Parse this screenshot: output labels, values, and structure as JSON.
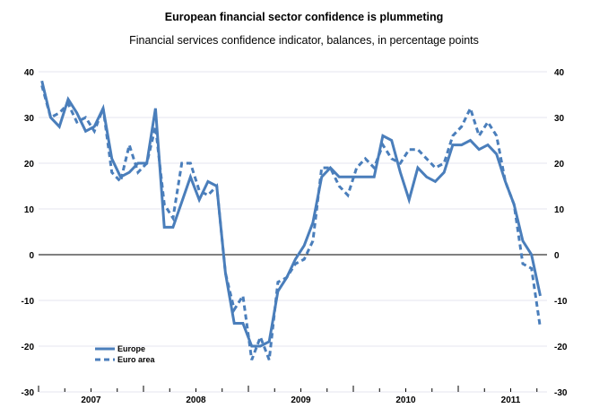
{
  "chart_data": {
    "type": "line",
    "title": "European financial sector confidence is plummeting",
    "subtitle": "Financial services confidence indicator, balances, in percentage points",
    "xlabel": "",
    "ylabel": "",
    "ylim": [
      -30,
      40
    ],
    "yticks": [
      40,
      30,
      20,
      10,
      0,
      -10,
      -20,
      -30
    ],
    "x_start": "2007-01",
    "x_frequency": "monthly",
    "xtick_labels": [
      "2007",
      "2008",
      "2009",
      "2010",
      "2011"
    ],
    "grid": true,
    "legend_position": "bottom-left",
    "colors": {
      "series": "#4a7ebb",
      "grid": "#e4e6ef",
      "zero": "#000000"
    },
    "series": [
      {
        "name": "Europe",
        "style": "solid",
        "values": [
          38,
          30,
          28,
          34,
          31,
          27,
          28,
          32,
          21,
          17,
          18,
          20,
          20,
          32,
          6,
          6,
          11.5,
          17,
          12,
          16,
          15,
          -4,
          -15,
          -15,
          -20,
          -20,
          -19,
          -8,
          -5,
          -1,
          2,
          7,
          17,
          19,
          17,
          17,
          17,
          17,
          17,
          26,
          25,
          18,
          12,
          19,
          17,
          16,
          18,
          24,
          24,
          25,
          23,
          24,
          22,
          16,
          11,
          3,
          0,
          -9
        ]
      },
      {
        "name": "Euro area",
        "style": "dashed",
        "values": [
          37,
          30,
          31,
          33,
          29,
          30,
          27,
          32,
          18,
          16,
          24,
          18,
          20,
          28,
          11,
          8,
          20,
          20,
          14,
          13,
          15,
          -4,
          -12,
          -9,
          -23,
          -18,
          -23,
          -6,
          -5,
          -2,
          -1,
          3,
          19,
          19,
          15,
          13,
          19,
          21,
          19,
          24,
          21,
          20,
          23,
          23,
          21,
          19,
          20,
          26,
          28,
          32,
          26,
          29,
          26,
          16,
          11,
          -2,
          -3,
          -16
        ]
      }
    ]
  }
}
